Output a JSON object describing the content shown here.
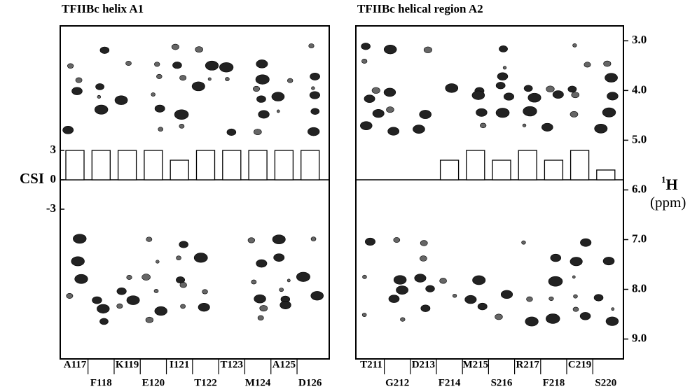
{
  "chart_data": [
    {
      "type": "bar",
      "title": "TFIIBc helix A1",
      "categories": [
        "A117",
        "F118",
        "K119",
        "E120",
        "I121",
        "T122",
        "T123",
        "M124",
        "A125",
        "D126"
      ],
      "values": [
        3,
        3,
        3,
        3,
        2,
        3,
        3,
        3,
        3,
        3
      ],
      "ylabel": "CSI",
      "ylim": [
        -3,
        3
      ],
      "yticks": [
        3,
        0,
        -3
      ]
    },
    {
      "type": "bar",
      "title": "TFIIBc helical region A2",
      "categories": [
        "T211",
        "G212",
        "D213",
        "F214",
        "M215",
        "S216",
        "R217",
        "F218",
        "C219",
        "S220"
      ],
      "values": [
        0,
        0,
        0,
        2,
        3,
        2,
        3,
        2,
        3,
        1
      ],
      "y2label": {
        "isotope": "1",
        "nucleus": "H",
        "unit": "(ppm)"
      },
      "y2lim": [
        2.7,
        9.4
      ],
      "y2ticks": [
        {
          "value": 3,
          "label": "3.0"
        },
        {
          "value": 4,
          "label": "4.0"
        },
        {
          "value": 5,
          "label": "5.0"
        },
        {
          "value": 6,
          "label": "6.0"
        },
        {
          "value": 7,
          "label": "7.0"
        },
        {
          "value": 8,
          "label": "8.0"
        },
        {
          "value": 9,
          "label": "9.0"
        }
      ]
    }
  ]
}
